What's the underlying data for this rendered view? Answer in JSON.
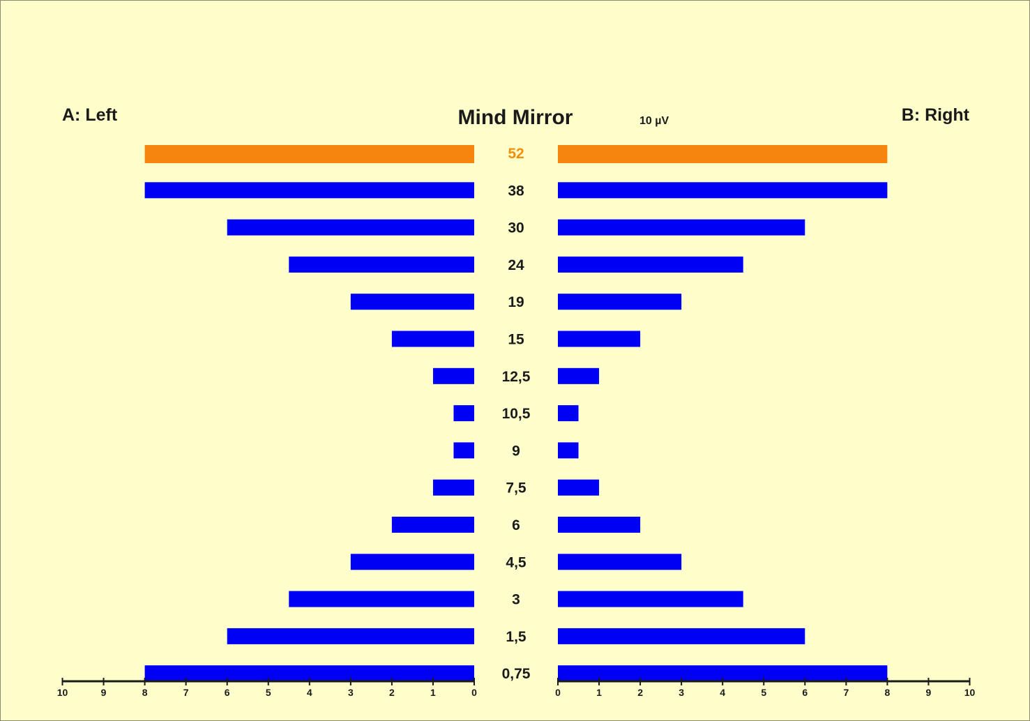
{
  "chart_data": {
    "type": "bar",
    "title": "Mind Mirror",
    "unit_label": "10  µV",
    "left_label": "A: Left",
    "right_label": "B: Right",
    "categories": [
      "52",
      "38",
      "30",
      "24",
      "19",
      "15",
      "12,5",
      "10,5",
      "9",
      "7,5",
      "6",
      "4,5",
      "3",
      "1,5",
      "0,75"
    ],
    "series": [
      {
        "name": "A: Left",
        "values": [
          8,
          8,
          6,
          4.5,
          3,
          2,
          1,
          0.5,
          0.5,
          1,
          2,
          3,
          4.5,
          6,
          8
        ]
      },
      {
        "name": "B: Right",
        "values": [
          8,
          8,
          6,
          4.5,
          3,
          2,
          1,
          0.5,
          0.5,
          1,
          2,
          3,
          4.5,
          6,
          8
        ]
      }
    ],
    "highlight_index": 0,
    "colors": {
      "bar": "#0000f5",
      "highlight": "#f5850f",
      "highlight_text": "#f0900a",
      "text": "#1a1a1a",
      "background": "#ffffcc"
    },
    "xlim": [
      0,
      10
    ],
    "left_ticks": [
      "10",
      "9",
      "8",
      "7",
      "6",
      "5",
      "4",
      "3",
      "2",
      "1",
      "0"
    ],
    "right_ticks": [
      "0",
      "1",
      "2",
      "3",
      "4",
      "5",
      "6",
      "7",
      "8",
      "9",
      "10"
    ]
  }
}
